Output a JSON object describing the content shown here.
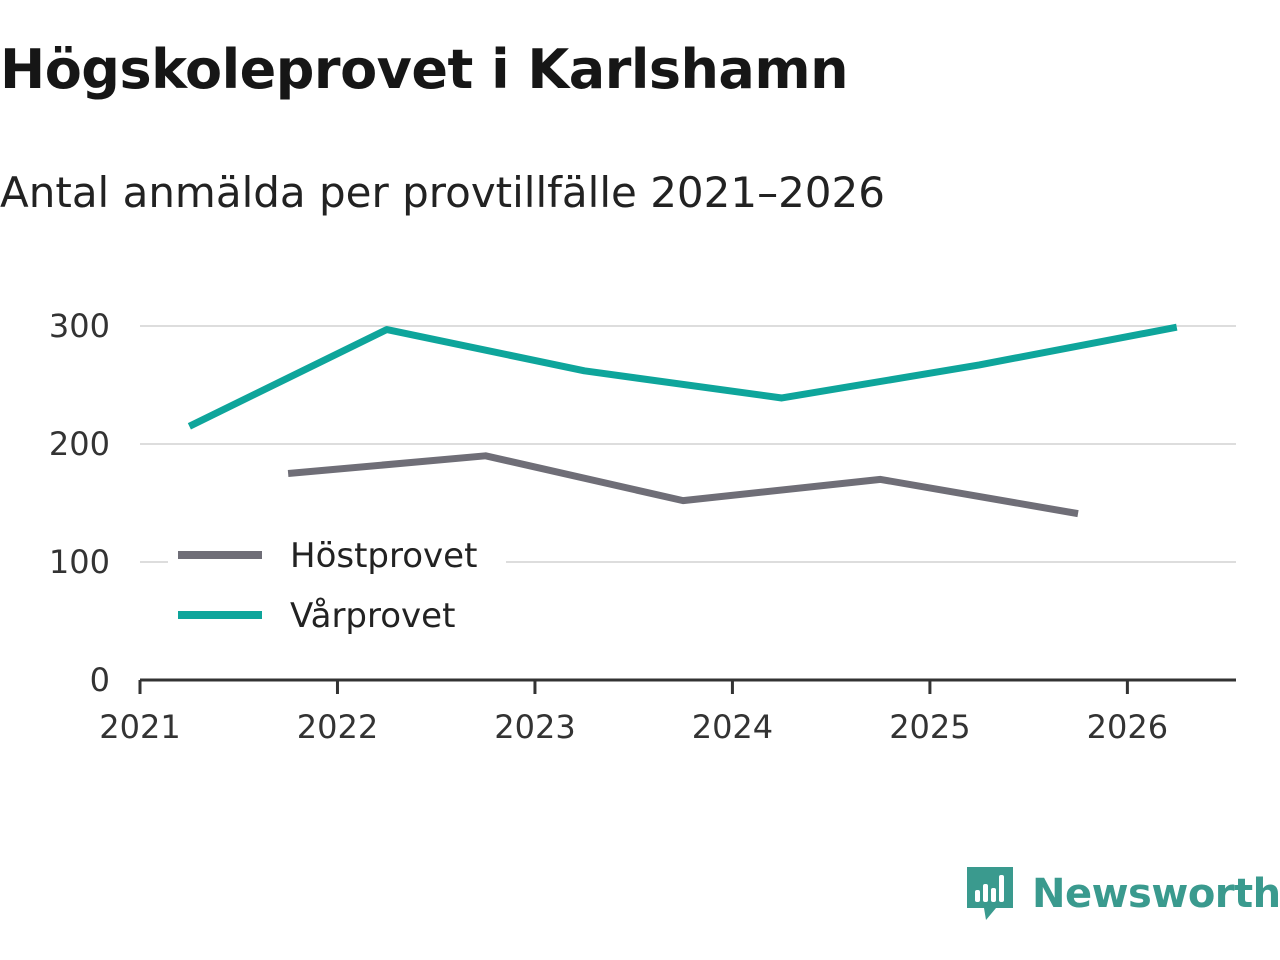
{
  "title": "Högskoleprovet i Karlshamn",
  "subtitle": "Antal anmälda per provtillfälle 2021–2026",
  "brand": {
    "name": "Newsworthy",
    "color": "#3a9a8e"
  },
  "chart_data": {
    "type": "line",
    "title": "Högskoleprovet i Karlshamn",
    "subtitle": "Antal anmälda per provtillfälle 2021–2026",
    "xlabel": "",
    "ylabel": "",
    "xlim": [
      2021,
      2026.55
    ],
    "ylim": [
      0,
      300
    ],
    "y_ticks": [
      0,
      100,
      200,
      300
    ],
    "x_ticks": [
      2021,
      2022,
      2023,
      2024,
      2025,
      2026
    ],
    "grid": true,
    "legend_position": "lower-left",
    "series": [
      {
        "name": "Höstprovet",
        "color": "#6f6e77",
        "x": [
          2021.75,
          2022.75,
          2023.75,
          2024.75,
          2025.75
        ],
        "values": [
          175,
          190,
          152,
          170,
          141
        ]
      },
      {
        "name": "Vårprovet",
        "color": "#0ea59b",
        "x": [
          2021.25,
          2022.25,
          2023.25,
          2024.25,
          2025.25,
          2026.25
        ],
        "values": [
          215,
          297,
          262,
          239,
          267,
          299
        ]
      }
    ]
  }
}
